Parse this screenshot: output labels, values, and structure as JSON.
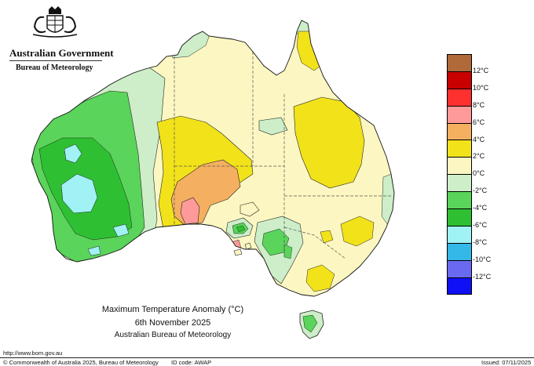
{
  "header": {
    "government": "Australian Government",
    "bureau": "Bureau of Meteorology"
  },
  "map": {
    "title": "Maximum Temperature Anomaly (°C)",
    "date": "6th November 2025",
    "source": "Australian Bureau of Meteorology"
  },
  "legend": {
    "items": [
      {
        "label": "12°C",
        "color": "#b06a3a"
      },
      {
        "label": "10°C",
        "color": "#c80000"
      },
      {
        "label": "8°C",
        "color": "#ff3030"
      },
      {
        "label": "6°C",
        "color": "#ff9a9a"
      },
      {
        "label": "4°C",
        "color": "#f4b060"
      },
      {
        "label": "2°C",
        "color": "#f2e21a"
      },
      {
        "label": "0°C",
        "color": "#fcf7c2"
      },
      {
        "label": "-2°C",
        "color": "#cdeec8"
      },
      {
        "label": "-4°C",
        "color": "#5ad45a"
      },
      {
        "label": "-6°C",
        "color": "#2ec032"
      },
      {
        "label": "-8°C",
        "color": "#a0f2f4"
      },
      {
        "label": "-10°C",
        "color": "#34b8e8"
      },
      {
        "label": "-12°C",
        "color": "#6a6af0"
      },
      {
        "label": "",
        "color": "#1010f4"
      }
    ]
  },
  "footer": {
    "url": "http://www.bom.gov.au",
    "copyright": "© Commonwealth of Australia 2025, Bureau of Meteorology",
    "id_code": "ID code: AWAP",
    "issued": "Issued: 07/11/2025"
  }
}
